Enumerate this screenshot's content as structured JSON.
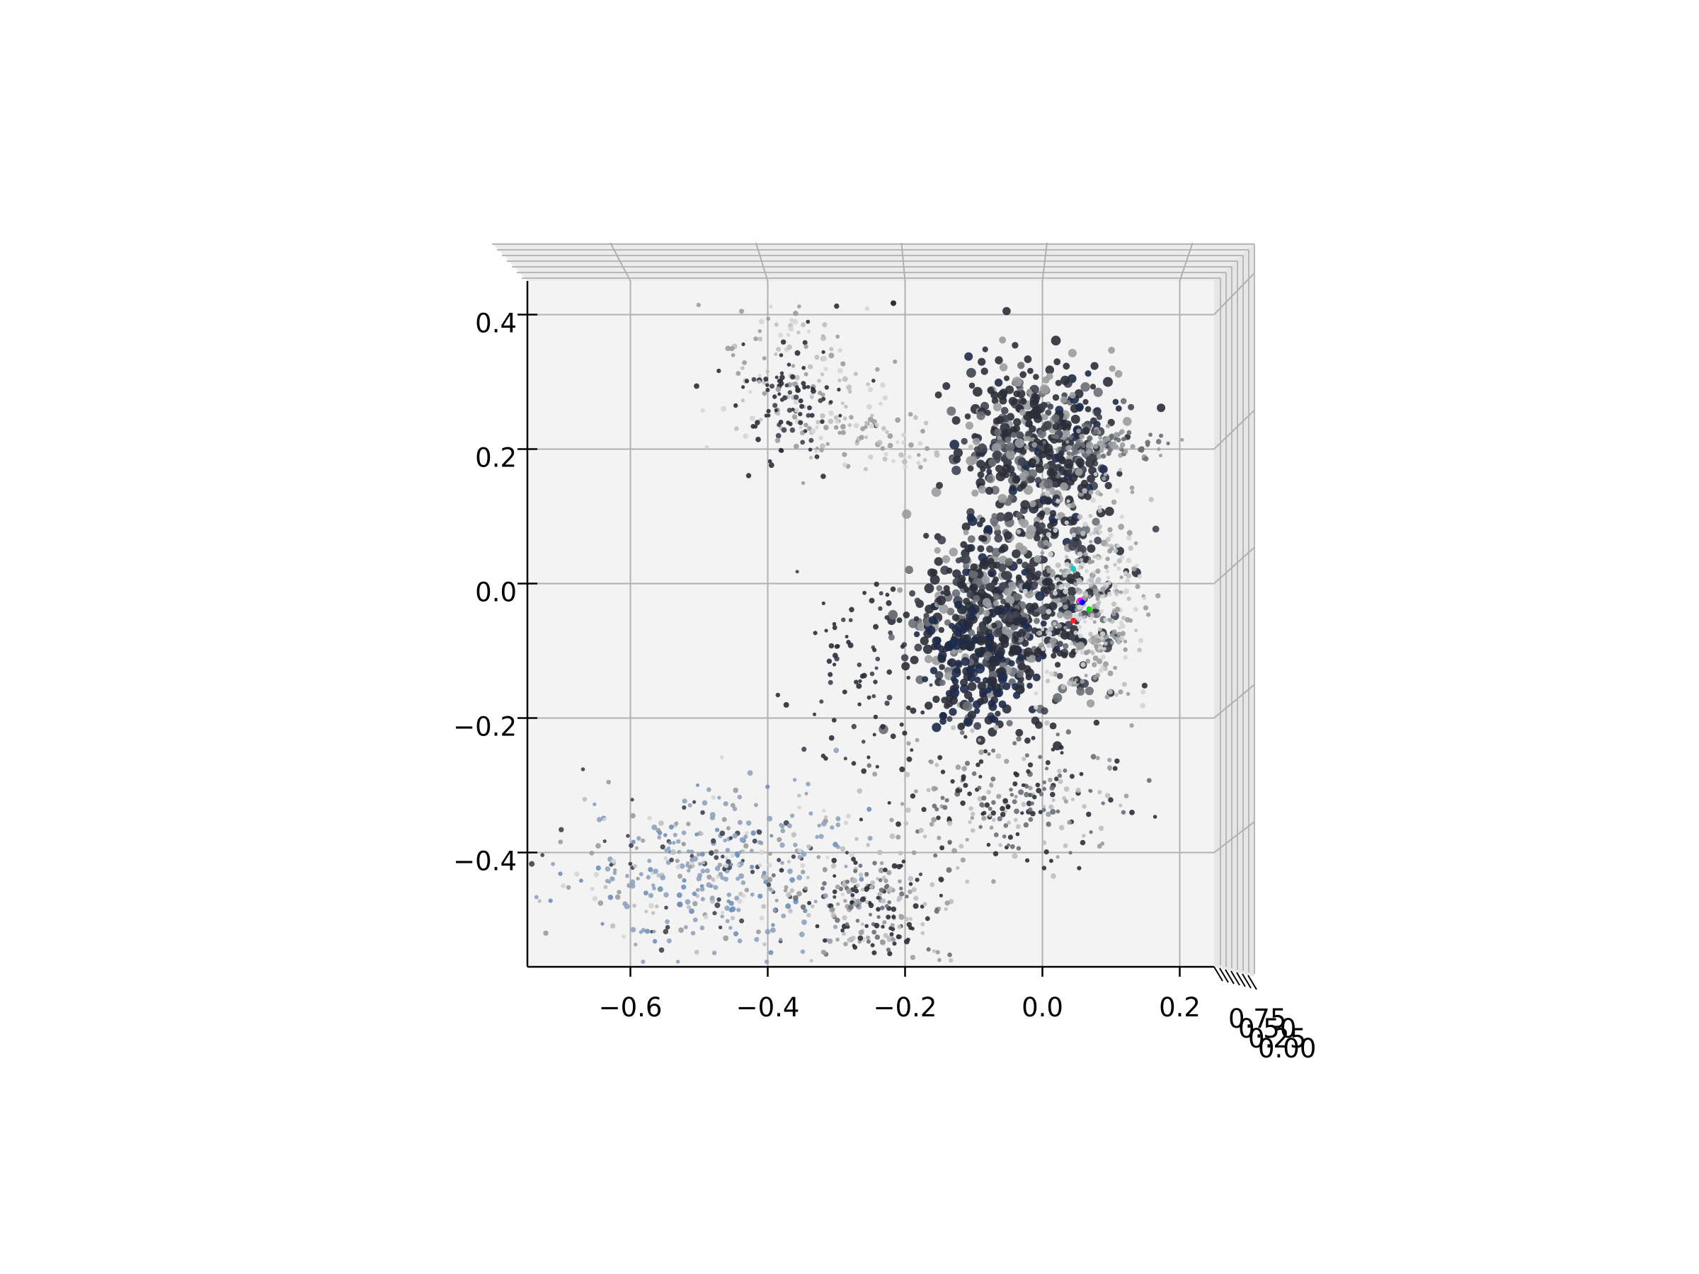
{
  "chart_data": {
    "type": "scatter",
    "projection": "3d",
    "view": "top-down",
    "title": "",
    "xlabel": "",
    "ylabel": "",
    "zlabel": "",
    "xlim": [
      -0.75,
      0.25
    ],
    "ylim": [
      -0.57,
      0.45
    ],
    "grid": true,
    "pane_color": "#f3f3f3",
    "grid_color": "#b0b0b0",
    "x_ticks": [
      {
        "value": -0.6,
        "label": "−0.6"
      },
      {
        "value": -0.4,
        "label": "−0.4"
      },
      {
        "value": -0.2,
        "label": "−0.2"
      },
      {
        "value": 0.0,
        "label": "0.0"
      },
      {
        "value": 0.2,
        "label": "0.2"
      }
    ],
    "y_ticks": [
      {
        "value": 0.4,
        "label": "0.4"
      },
      {
        "value": 0.2,
        "label": "0.2"
      },
      {
        "value": 0.0,
        "label": "0.0"
      },
      {
        "value": -0.2,
        "label": "−0.2"
      },
      {
        "value": -0.4,
        "label": "−0.4"
      }
    ],
    "z_tick_labels": [
      "0.75",
      "0.50",
      "0.25",
      "0.00"
    ],
    "point_colors": [
      "#2b2e38",
      "#3f4350",
      "#6b6e75",
      "#9a9c9f",
      "#bdbfc1",
      "#d3d5d7",
      "#1e2a4a",
      "#8fa3bf",
      "#6f8fb8"
    ],
    "point_clusters": [
      {
        "name": "upper-left arc",
        "center": [
          -0.37,
          0.31
        ],
        "spread": [
          0.06,
          0.05
        ],
        "count": 140,
        "tone": "mixed-light"
      },
      {
        "name": "upper-left dark",
        "center": [
          -0.36,
          0.25
        ],
        "spread": [
          0.03,
          0.04
        ],
        "count": 60,
        "tone": "dark"
      },
      {
        "name": "top arc",
        "center": [
          -0.25,
          0.22
        ],
        "spread": [
          0.06,
          0.03
        ],
        "count": 90,
        "tone": "light"
      },
      {
        "name": "upper-right structure",
        "center": [
          -0.01,
          0.2
        ],
        "spread": [
          0.06,
          0.07
        ],
        "count": 520,
        "tone": "dense"
      },
      {
        "name": "upper-right bar",
        "center": [
          0.09,
          0.21
        ],
        "spread": [
          0.05,
          0.012
        ],
        "count": 90,
        "tone": "mid"
      },
      {
        "name": "central mass",
        "center": [
          -0.05,
          -0.05
        ],
        "spread": [
          0.07,
          0.07
        ],
        "count": 650,
        "tone": "dense"
      },
      {
        "name": "light fan",
        "center": [
          0.08,
          -0.02
        ],
        "spread": [
          0.04,
          0.08
        ],
        "count": 280,
        "tone": "light"
      },
      {
        "name": "navy patches",
        "center": [
          -0.09,
          -0.12
        ],
        "spread": [
          0.04,
          0.05
        ],
        "count": 120,
        "tone": "navy"
      },
      {
        "name": "lower arc",
        "center": [
          -0.06,
          -0.32
        ],
        "spread": [
          0.09,
          0.05
        ],
        "count": 260,
        "tone": "mixed"
      },
      {
        "name": "left-lower ring",
        "center": [
          -0.48,
          -0.42
        ],
        "spread": [
          0.11,
          0.06
        ],
        "count": 420,
        "tone": "blue-grey"
      },
      {
        "name": "bottom ring",
        "center": [
          -0.25,
          -0.48
        ],
        "spread": [
          0.06,
          0.04
        ],
        "count": 220,
        "tone": "mixed"
      },
      {
        "name": "middle-left stragglers",
        "center": [
          -0.26,
          -0.14
        ],
        "spread": [
          0.05,
          0.08
        ],
        "count": 80,
        "tone": "dark"
      }
    ],
    "marker_points": [
      {
        "x": 0.045,
        "y": 0.022,
        "color": "#00d1c1"
      },
      {
        "x": 0.055,
        "y": -0.025,
        "color": "#ff00ff"
      },
      {
        "x": 0.058,
        "y": -0.028,
        "color": "#0000ff"
      },
      {
        "x": 0.068,
        "y": -0.038,
        "color": "#00e000"
      },
      {
        "x": 0.045,
        "y": -0.055,
        "color": "#ff2020"
      }
    ]
  }
}
